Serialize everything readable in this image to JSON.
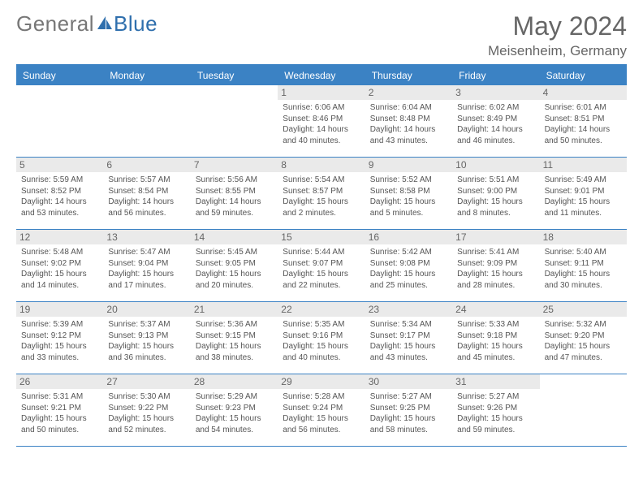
{
  "brand": {
    "part1": "General",
    "part2": "Blue"
  },
  "title": "May 2024",
  "location": "Meisenheim, Germany",
  "colors": {
    "header_bg": "#3b82c4",
    "header_text": "#ffffff",
    "daynum_bg": "#eaeaea",
    "text": "#555555",
    "title_text": "#666666"
  },
  "day_names": [
    "Sunday",
    "Monday",
    "Tuesday",
    "Wednesday",
    "Thursday",
    "Friday",
    "Saturday"
  ],
  "weeks": [
    [
      null,
      null,
      null,
      {
        "n": "1",
        "sr": "Sunrise: 6:06 AM",
        "ss": "Sunset: 8:46 PM",
        "dl": "Daylight: 14 hours and 40 minutes."
      },
      {
        "n": "2",
        "sr": "Sunrise: 6:04 AM",
        "ss": "Sunset: 8:48 PM",
        "dl": "Daylight: 14 hours and 43 minutes."
      },
      {
        "n": "3",
        "sr": "Sunrise: 6:02 AM",
        "ss": "Sunset: 8:49 PM",
        "dl": "Daylight: 14 hours and 46 minutes."
      },
      {
        "n": "4",
        "sr": "Sunrise: 6:01 AM",
        "ss": "Sunset: 8:51 PM",
        "dl": "Daylight: 14 hours and 50 minutes."
      }
    ],
    [
      {
        "n": "5",
        "sr": "Sunrise: 5:59 AM",
        "ss": "Sunset: 8:52 PM",
        "dl": "Daylight: 14 hours and 53 minutes."
      },
      {
        "n": "6",
        "sr": "Sunrise: 5:57 AM",
        "ss": "Sunset: 8:54 PM",
        "dl": "Daylight: 14 hours and 56 minutes."
      },
      {
        "n": "7",
        "sr": "Sunrise: 5:56 AM",
        "ss": "Sunset: 8:55 PM",
        "dl": "Daylight: 14 hours and 59 minutes."
      },
      {
        "n": "8",
        "sr": "Sunrise: 5:54 AM",
        "ss": "Sunset: 8:57 PM",
        "dl": "Daylight: 15 hours and 2 minutes."
      },
      {
        "n": "9",
        "sr": "Sunrise: 5:52 AM",
        "ss": "Sunset: 8:58 PM",
        "dl": "Daylight: 15 hours and 5 minutes."
      },
      {
        "n": "10",
        "sr": "Sunrise: 5:51 AM",
        "ss": "Sunset: 9:00 PM",
        "dl": "Daylight: 15 hours and 8 minutes."
      },
      {
        "n": "11",
        "sr": "Sunrise: 5:49 AM",
        "ss": "Sunset: 9:01 PM",
        "dl": "Daylight: 15 hours and 11 minutes."
      }
    ],
    [
      {
        "n": "12",
        "sr": "Sunrise: 5:48 AM",
        "ss": "Sunset: 9:02 PM",
        "dl": "Daylight: 15 hours and 14 minutes."
      },
      {
        "n": "13",
        "sr": "Sunrise: 5:47 AM",
        "ss": "Sunset: 9:04 PM",
        "dl": "Daylight: 15 hours and 17 minutes."
      },
      {
        "n": "14",
        "sr": "Sunrise: 5:45 AM",
        "ss": "Sunset: 9:05 PM",
        "dl": "Daylight: 15 hours and 20 minutes."
      },
      {
        "n": "15",
        "sr": "Sunrise: 5:44 AM",
        "ss": "Sunset: 9:07 PM",
        "dl": "Daylight: 15 hours and 22 minutes."
      },
      {
        "n": "16",
        "sr": "Sunrise: 5:42 AM",
        "ss": "Sunset: 9:08 PM",
        "dl": "Daylight: 15 hours and 25 minutes."
      },
      {
        "n": "17",
        "sr": "Sunrise: 5:41 AM",
        "ss": "Sunset: 9:09 PM",
        "dl": "Daylight: 15 hours and 28 minutes."
      },
      {
        "n": "18",
        "sr": "Sunrise: 5:40 AM",
        "ss": "Sunset: 9:11 PM",
        "dl": "Daylight: 15 hours and 30 minutes."
      }
    ],
    [
      {
        "n": "19",
        "sr": "Sunrise: 5:39 AM",
        "ss": "Sunset: 9:12 PM",
        "dl": "Daylight: 15 hours and 33 minutes."
      },
      {
        "n": "20",
        "sr": "Sunrise: 5:37 AM",
        "ss": "Sunset: 9:13 PM",
        "dl": "Daylight: 15 hours and 36 minutes."
      },
      {
        "n": "21",
        "sr": "Sunrise: 5:36 AM",
        "ss": "Sunset: 9:15 PM",
        "dl": "Daylight: 15 hours and 38 minutes."
      },
      {
        "n": "22",
        "sr": "Sunrise: 5:35 AM",
        "ss": "Sunset: 9:16 PM",
        "dl": "Daylight: 15 hours and 40 minutes."
      },
      {
        "n": "23",
        "sr": "Sunrise: 5:34 AM",
        "ss": "Sunset: 9:17 PM",
        "dl": "Daylight: 15 hours and 43 minutes."
      },
      {
        "n": "24",
        "sr": "Sunrise: 5:33 AM",
        "ss": "Sunset: 9:18 PM",
        "dl": "Daylight: 15 hours and 45 minutes."
      },
      {
        "n": "25",
        "sr": "Sunrise: 5:32 AM",
        "ss": "Sunset: 9:20 PM",
        "dl": "Daylight: 15 hours and 47 minutes."
      }
    ],
    [
      {
        "n": "26",
        "sr": "Sunrise: 5:31 AM",
        "ss": "Sunset: 9:21 PM",
        "dl": "Daylight: 15 hours and 50 minutes."
      },
      {
        "n": "27",
        "sr": "Sunrise: 5:30 AM",
        "ss": "Sunset: 9:22 PM",
        "dl": "Daylight: 15 hours and 52 minutes."
      },
      {
        "n": "28",
        "sr": "Sunrise: 5:29 AM",
        "ss": "Sunset: 9:23 PM",
        "dl": "Daylight: 15 hours and 54 minutes."
      },
      {
        "n": "29",
        "sr": "Sunrise: 5:28 AM",
        "ss": "Sunset: 9:24 PM",
        "dl": "Daylight: 15 hours and 56 minutes."
      },
      {
        "n": "30",
        "sr": "Sunrise: 5:27 AM",
        "ss": "Sunset: 9:25 PM",
        "dl": "Daylight: 15 hours and 58 minutes."
      },
      {
        "n": "31",
        "sr": "Sunrise: 5:27 AM",
        "ss": "Sunset: 9:26 PM",
        "dl": "Daylight: 15 hours and 59 minutes."
      },
      null
    ]
  ]
}
